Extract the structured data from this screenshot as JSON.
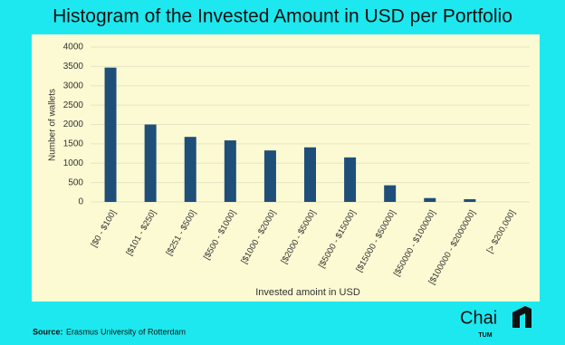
{
  "chart_data": {
    "type": "bar",
    "title": "Histogram of the Invested Amount in USD per Portfolio",
    "y_label": "Number of wallets",
    "x_label": "Invested amoint in USD",
    "categories": [
      "[$0 - $100]",
      "[$101 - $250]",
      "[$251 - $500]",
      "[$500 - $1000]",
      "[$1000 - $2000]",
      "[$2000 - $5000]",
      "[$5000 - $15000]",
      "[$15000 - $50000]",
      "[$50000 - $100000]",
      "[$100000 - $2000000]",
      "[> $200,000]"
    ],
    "values": [
      3470,
      2000,
      1680,
      1590,
      1330,
      1410,
      1150,
      430,
      100,
      70,
      0
    ],
    "color": "#1f4e79",
    "ylim": [
      0,
      4000
    ],
    "yticks": [
      0,
      500,
      1000,
      1500,
      2000,
      2500,
      3000,
      3500,
      4000
    ],
    "grid": true
  },
  "footer": {
    "source_label": "Source:",
    "source": "Erasmus University of Rotterdam"
  },
  "logo": {
    "name": "Chai",
    "sub": "TUM"
  }
}
